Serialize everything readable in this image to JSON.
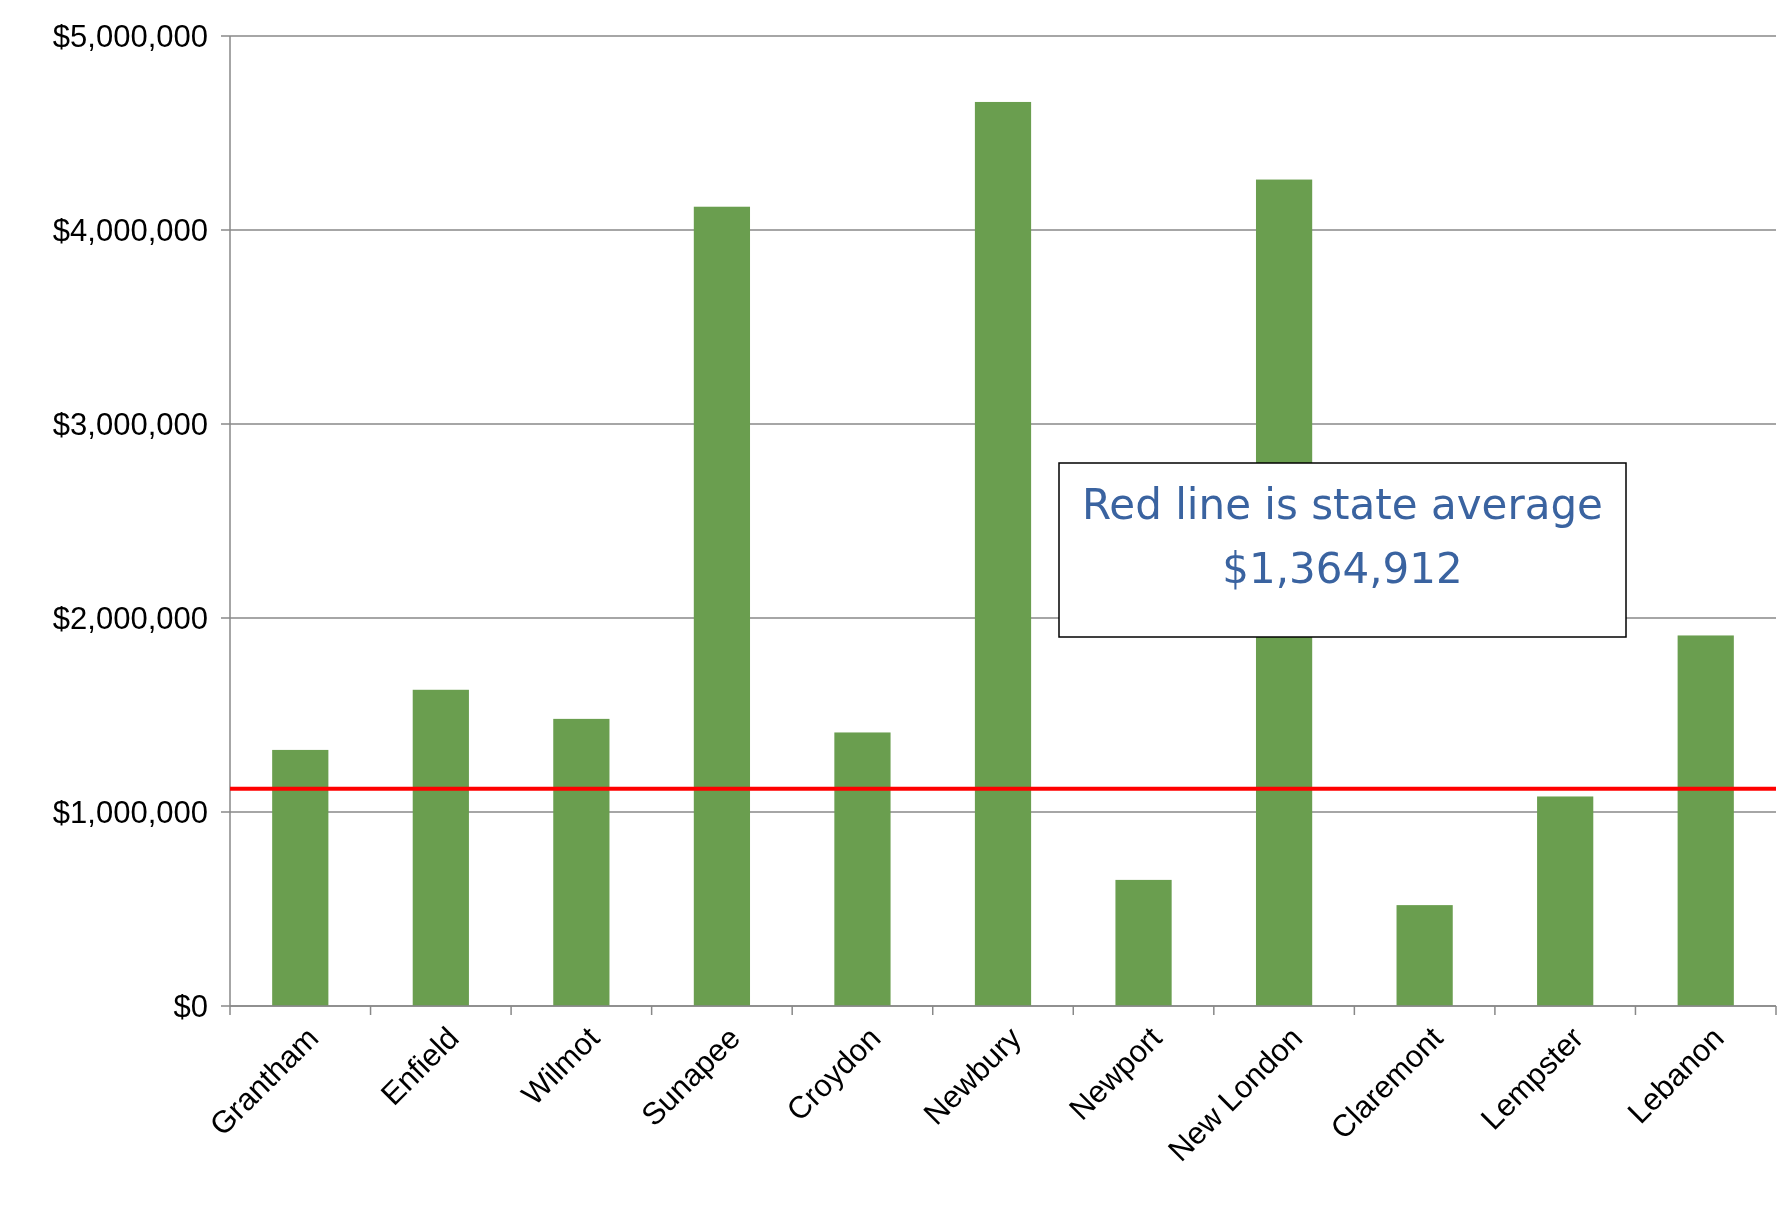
{
  "chart_data": {
    "type": "bar",
    "categories": [
      "Grantham",
      "Enfield",
      "Wilmot",
      "Sunapee",
      "Croydon",
      "Newbury",
      "Newport",
      "New London",
      "Claremont",
      "Lempster",
      "Lebanon"
    ],
    "values": [
      1320000,
      1630000,
      1480000,
      4120000,
      1410000,
      4660000,
      650000,
      4260000,
      520000,
      1080000,
      1910000
    ],
    "color": "#6a9e4f",
    "ylim": [
      0,
      5000000
    ],
    "yticks": [
      {
        "value": 0,
        "label": "$0"
      },
      {
        "value": 1000000,
        "label": "$1,000,000"
      },
      {
        "value": 2000000,
        "label": "$2,000,000"
      },
      {
        "value": 3000000,
        "label": "$3,000,000"
      },
      {
        "value": 4000000,
        "label": "$4,000,000"
      },
      {
        "value": 5000000,
        "label": "$5,000,000"
      }
    ],
    "grid": "y",
    "ref_lines": [
      {
        "axis": "y",
        "value": 1120000,
        "color": "#ff0000"
      }
    ],
    "annotations": [
      "Red line is state average",
      "$1,364,912"
    ]
  }
}
